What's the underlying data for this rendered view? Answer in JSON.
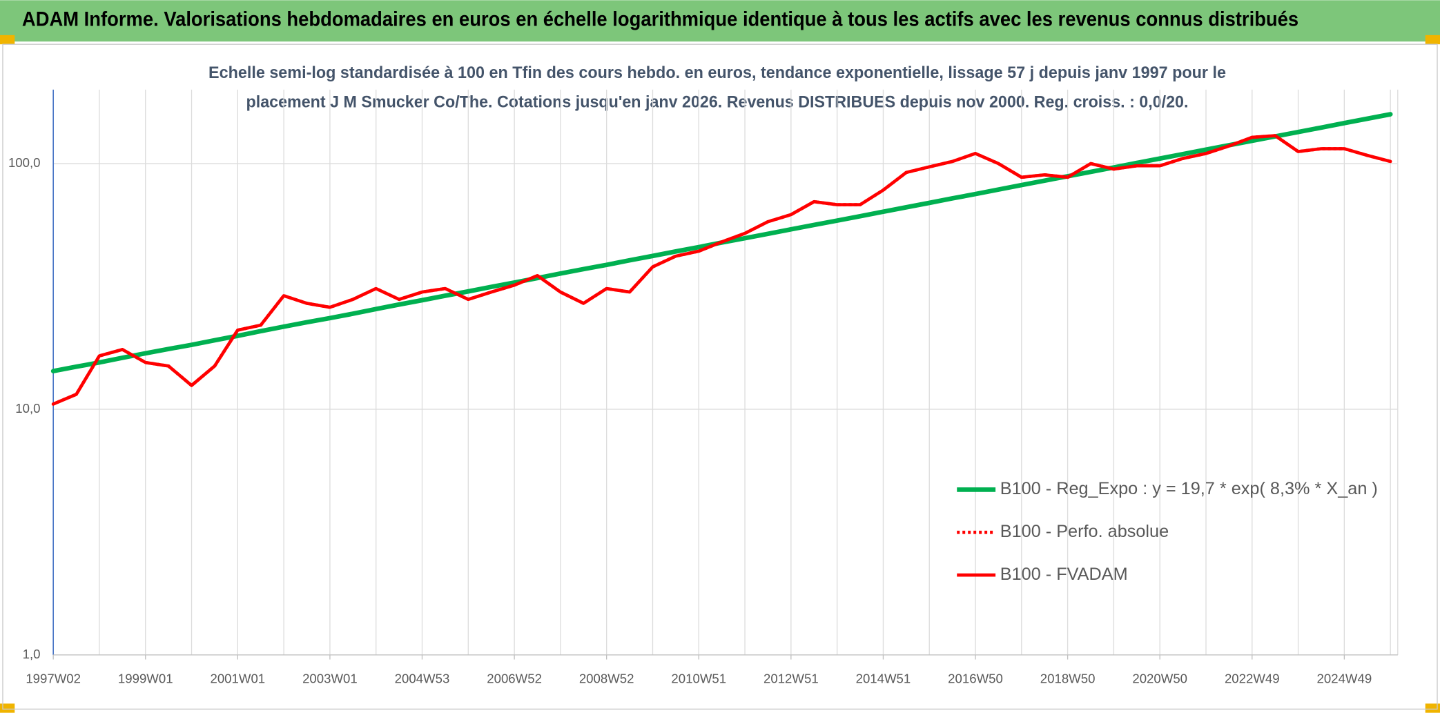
{
  "chart_data": {
    "type": "line",
    "title": "ADAM Informe. Valorisations hebdomadaires en euros en échelle logarithmique identique à tous les actifs avec les revenus connus distribués",
    "subtitle": [
      "Echelle semi-log standardisée à 100 en Tfin des cours hebdo. en euros, tendance exponentielle, lissage 57 j depuis janv 1997 pour le",
      "placement J M Smucker Co/The. Cotations jusqu'en janv 2026. Revenus DISTRIBUES depuis nov 2000. Reg. croiss. : 0,0/20."
    ],
    "categories": [
      "1997W02",
      null,
      null,
      null,
      "1999W01",
      null,
      null,
      null,
      "2001W01",
      null,
      null,
      null,
      "2003W01",
      null,
      null,
      null,
      "2004W53",
      null,
      null,
      null,
      "2006W52",
      null,
      null,
      null,
      "2008W52",
      null,
      null,
      null,
      "2010W51",
      null,
      null,
      null,
      "2012W51",
      null,
      null,
      null,
      "2014W51",
      null,
      null,
      null,
      "2016W50",
      null,
      null,
      null,
      "2018W50",
      null,
      null,
      null,
      "2020W50",
      null,
      null,
      null,
      "2022W49",
      null,
      null,
      null,
      "2024W49",
      null,
      null
    ],
    "series": [
      {
        "name": "B100 - Reg_Expo : y = 19,7 * exp( 8,3% *  X_an )",
        "color": "#00b050",
        "style": "solid",
        "values": [
          14.3,
          14.9,
          15.5,
          16.2,
          16.9,
          17.6,
          18.3,
          19.1,
          19.9,
          20.8,
          21.7,
          22.6,
          23.5,
          24.5,
          25.6,
          26.7,
          27.8,
          29.0,
          30.2,
          31.5,
          32.8,
          34.2,
          35.7,
          37.2,
          38.7,
          40.4,
          42.1,
          43.9,
          45.7,
          47.7,
          49.7,
          51.8,
          54.0,
          56.3,
          58.6,
          61.1,
          63.7,
          66.4,
          69.2,
          72.2,
          75.2,
          78.4,
          81.8,
          85.2,
          88.8,
          92.6,
          96.5,
          100.6,
          104.9,
          109.3,
          114.0,
          118.8,
          123.8,
          129.1,
          134.5,
          140.2,
          146.2,
          152.4,
          158.8
        ]
      },
      {
        "name": "B100 - Perfo. absolue",
        "color": "#ff0000",
        "style": "dotted",
        "values": [
          10.5,
          11.5,
          16.5,
          17.5,
          15.5,
          15,
          12.5,
          15,
          21,
          22,
          29,
          27,
          26,
          28,
          31,
          28,
          30,
          31,
          28,
          30,
          32,
          35,
          30,
          27,
          31,
          30,
          38,
          42,
          44,
          48,
          52,
          58,
          62,
          70,
          68,
          68,
          78,
          92,
          97,
          102,
          110,
          100,
          88,
          90,
          88,
          100,
          95,
          98,
          98,
          105,
          110,
          118,
          128,
          130,
          112,
          115,
          115,
          108,
          102
        ]
      },
      {
        "name": "B100 - FVADAM",
        "color": "#ff0000",
        "style": "solid",
        "values": [
          10.5,
          11.5,
          16.5,
          17.5,
          15.5,
          15,
          12.5,
          15,
          21,
          22,
          29,
          27,
          26,
          28,
          31,
          28,
          30,
          31,
          28,
          30,
          32,
          35,
          30,
          27,
          31,
          30,
          38,
          42,
          44,
          48,
          52,
          58,
          62,
          70,
          68,
          68,
          78,
          92,
          97,
          102,
          110,
          100,
          88,
          90,
          88,
          100,
          95,
          98,
          98,
          105,
          110,
          118,
          128,
          130,
          112,
          115,
          115,
          108,
          102
        ]
      }
    ],
    "log_scale": true,
    "ylim": [
      1,
      200
    ],
    "yticks": [
      {
        "value": 1,
        "label": "1,0"
      },
      {
        "value": 10,
        "label": "10,0"
      },
      {
        "value": 100,
        "label": "100,0"
      }
    ],
    "grid": true
  }
}
